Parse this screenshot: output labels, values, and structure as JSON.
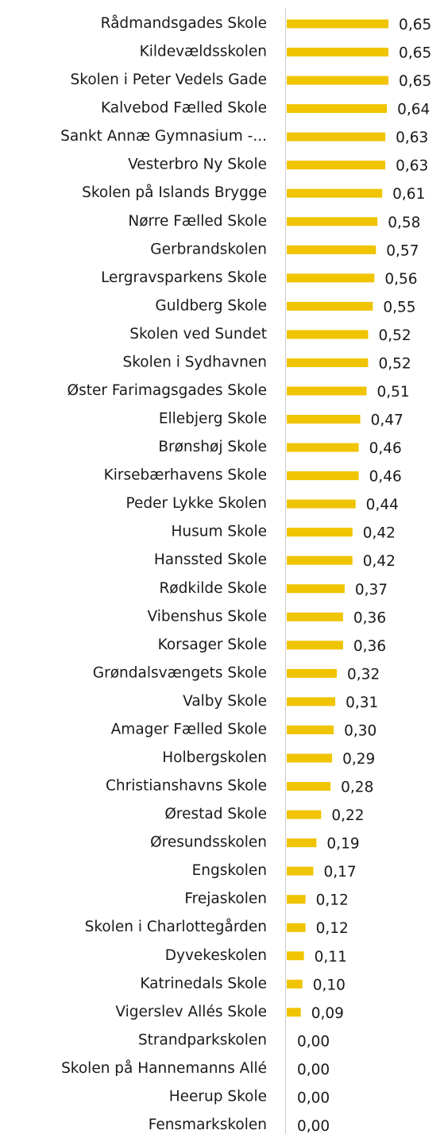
{
  "chart_data": {
    "type": "bar",
    "orientation": "horizontal",
    "color": "#f0c400",
    "categories": [
      "Rådmandsgades Skole",
      "Kildevældsskolen",
      "Skolen i Peter Vedels Gade",
      "Kalvebod Fælled Skole",
      "Sankt Annæ Gymnasium -...",
      "Vesterbro Ny Skole",
      "Skolen på Islands Brygge",
      "Nørre Fælled Skole",
      "Gerbrandskolen",
      "Lergravsparkens Skole",
      "Guldberg Skole",
      "Skolen ved Sundet",
      "Skolen i Sydhavnen",
      "Øster Farimagsgades Skole",
      "Ellebjerg Skole",
      "Brønshøj Skole",
      "Kirsebærhavens Skole",
      "Peder Lykke Skolen",
      "Husum Skole",
      "Hanssted Skole",
      "Rødkilde Skole",
      "Vibenshus Skole",
      "Korsager Skole",
      "Grøndalsvængets Skole",
      "Valby Skole",
      "Amager Fælled Skole",
      "Holbergskolen",
      "Christianshavns Skole",
      "Ørestad Skole",
      "Øresundsskolen",
      "Engskolen",
      "Frejaskolen",
      "Skolen i Charlottegården",
      "Dyvekeskolen",
      "Katrinedals Skole",
      "Vigerslev Allés Skole",
      "Strandparkskolen",
      "Skolen på Hannemanns Allé",
      "Heerup Skole",
      "Fensmarkskolen"
    ],
    "values": [
      0.65,
      0.65,
      0.65,
      0.64,
      0.63,
      0.63,
      0.61,
      0.58,
      0.57,
      0.56,
      0.55,
      0.52,
      0.52,
      0.51,
      0.47,
      0.46,
      0.46,
      0.44,
      0.42,
      0.42,
      0.37,
      0.36,
      0.36,
      0.32,
      0.31,
      0.3,
      0.29,
      0.28,
      0.22,
      0.19,
      0.17,
      0.12,
      0.12,
      0.11,
      0.1,
      0.09,
      0,
      0,
      0,
      0
    ],
    "value_labels": [
      "0,65",
      "0,65",
      "0,65",
      "0,64",
      "0,63",
      "0,63",
      "0,61",
      "0,58",
      "0,57",
      "0,56",
      "0,55",
      "0,52",
      "0,52",
      "0,51",
      "0,47",
      "0,46",
      "0,46",
      "0,44",
      "0,42",
      "0,42",
      "0,37",
      "0,36",
      "0,36",
      "0,32",
      "0,31",
      "0,30",
      "0,29",
      "0,28",
      "0,22",
      "0,19",
      "0,17",
      "0,12",
      "0,12",
      "0,11",
      "0,10",
      "0,09",
      "0,00",
      "0,00",
      "0,00",
      "0,00"
    ]
  }
}
